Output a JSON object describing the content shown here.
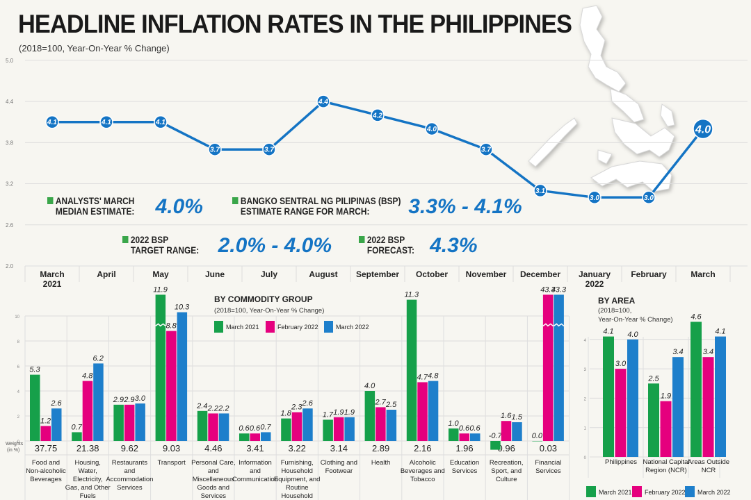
{
  "title": "HEADLINE INFLATION RATES IN THE PHILIPPINES",
  "subtitle": "(2018=100, Year-On-Year % Change)",
  "colors": {
    "line": "#1474c4",
    "march2021": "#16a04a",
    "feb2022": "#e5007e",
    "march2022": "#1e7fcb",
    "callout_square": "#3aa64a"
  },
  "callouts": [
    {
      "label1": "ANALYSTS' MARCH",
      "label2": "MEDIAN ESTIMATE:",
      "value": "4.0%"
    },
    {
      "label1": "BANGKO SENTRAL NG PILIPINAS (BSP)",
      "label2": "ESTIMATE RANGE FOR MARCH:",
      "value": "3.3% - 4.1%"
    },
    {
      "label1": "2022 BSP",
      "label2": "TARGET RANGE:",
      "value": "2.0% - 4.0%"
    },
    {
      "label1": "2022 BSP",
      "label2": "FORECAST:",
      "value": "4.3%"
    }
  ],
  "chart_data": [
    {
      "type": "line",
      "title": "HEADLINE INFLATION RATES IN THE PHILIPPINES",
      "subtitle": "(2018=100, Year-On-Year % Change)",
      "categories": [
        "March 2021",
        "April",
        "May",
        "June",
        "July",
        "August",
        "September",
        "October",
        "November",
        "December",
        "January 2022",
        "February",
        "March"
      ],
      "values": [
        4.1,
        4.1,
        4.1,
        3.7,
        3.7,
        4.4,
        4.2,
        4.0,
        3.7,
        3.1,
        3.0,
        3.0,
        4.0
      ],
      "labels": [
        "4.1",
        "4.1",
        "4.1",
        "3.7",
        "3.7",
        "4.4",
        "4.2",
        "4.0",
        "3.7",
        "3.1",
        "3.0",
        "3.0",
        "4.0"
      ],
      "yticks": [
        "2.0",
        "2.6",
        "3.2",
        "3.8",
        "4.4",
        "5.0"
      ],
      "ylim": [
        2.0,
        5.0
      ],
      "grid": true
    },
    {
      "type": "bar",
      "title": "BY COMMODITY GROUP",
      "subtitle": "(2018=100, Year-On-Year % Change)",
      "weights_label": "Weights (in %)",
      "categories": [
        "Food and Non-alcoholic Beverages",
        "Housing, Water, Electricity, Gas, and Other Fuels",
        "Restaurants and Accommodation Services",
        "Transport",
        "Personal Care, and Miscellaneous Goods and Services",
        "Information and Communication",
        "Furnishing, Household Equipment, and Routine Household Maintenance",
        "Clothing and Footwear",
        "Health",
        "Alcoholic Beverages and Tobacco",
        "Education Services",
        "Recreation, Sport, and Culture",
        "Financial Services"
      ],
      "weights": [
        "37.75",
        "21.38",
        "9.62",
        "9.03",
        "4.46",
        "3.41",
        "3.22",
        "3.14",
        "2.89",
        "2.16",
        "1.96",
        "0.96",
        "0.03"
      ],
      "series": [
        {
          "name": "March 2021",
          "values": [
            5.3,
            0.7,
            2.9,
            11.9,
            2.4,
            0.6,
            1.8,
            1.7,
            4.0,
            11.3,
            1.0,
            -0.7,
            0.0
          ]
        },
        {
          "name": "February 2022",
          "values": [
            1.2,
            4.8,
            2.9,
            8.8,
            2.2,
            0.6,
            2.3,
            1.9,
            2.7,
            4.7,
            0.6,
            1.6,
            43.3
          ]
        },
        {
          "name": "March 2022",
          "values": [
            2.6,
            6.2,
            3.0,
            10.3,
            2.2,
            0.7,
            2.6,
            1.9,
            2.5,
            4.8,
            0.6,
            1.5,
            43.3
          ]
        }
      ],
      "yticks": [
        "0",
        "2",
        "4",
        "6",
        "8",
        "10"
      ],
      "ylim": [
        0,
        12
      ],
      "axis_break": true,
      "legend": "top",
      "grid": true
    },
    {
      "type": "bar",
      "title": "BY AREA",
      "subtitle1": "(2018=100,",
      "subtitle2": "Year-On-Year % Change)",
      "categories": [
        "Philippines",
        "National Capital Region (NCR)",
        "Areas Outside NCR"
      ],
      "series": [
        {
          "name": "March 2021",
          "values": [
            4.1,
            2.5,
            4.6
          ]
        },
        {
          "name": "February 2022",
          "values": [
            3.0,
            1.9,
            3.4
          ]
        },
        {
          "name": "March 2022",
          "values": [
            4.0,
            3.4,
            4.1
          ]
        }
      ],
      "yticks": [
        "0",
        "1",
        "2",
        "3",
        "4"
      ],
      "ylim": [
        0,
        4.8
      ],
      "legend": "bottom",
      "grid": true
    }
  ]
}
